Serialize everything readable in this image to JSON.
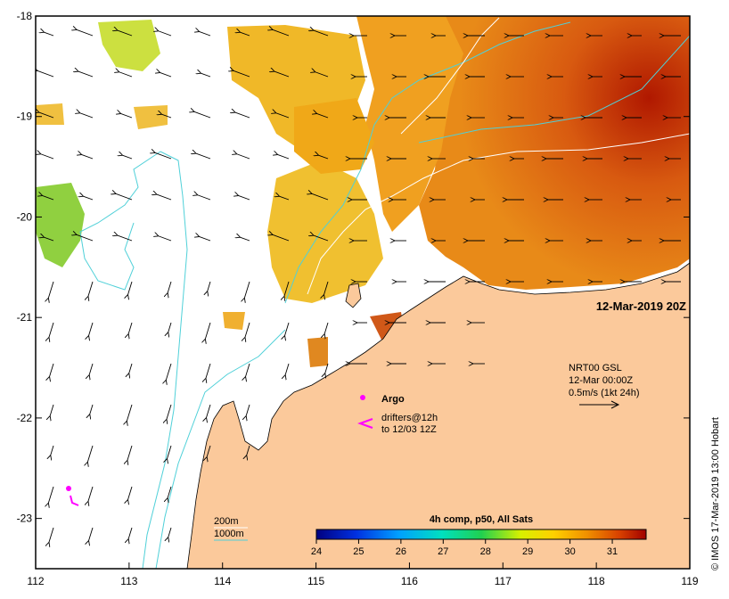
{
  "map": {
    "lon_range": [
      112,
      119
    ],
    "lat_range": [
      -23.5,
      -18
    ],
    "x_ticks": [
      "112",
      "113",
      "114",
      "115",
      "116",
      "117",
      "118",
      "119"
    ],
    "y_ticks": [
      "-18",
      "-19",
      "-20",
      "-21",
      "-22",
      "-23"
    ],
    "timestamp": "12-Mar-2019 20Z",
    "credit": "© IMOS 17-Mar-2019 13:00 Hobart",
    "current_info": {
      "line1": "NRT00 GSL",
      "line2": "12-Mar 00:00Z",
      "line3": "0.5m/s (1kt 24h)"
    },
    "argo_label": "Argo",
    "drifters_line1": "drifters@12h",
    "drifters_line2": "to 12/03 12Z",
    "contours": {
      "c200": "200m",
      "c1000": "1000m"
    },
    "colorbar": {
      "title": "4h comp, p50, All Sats",
      "min": 24,
      "max": 31.8,
      "ticks": [
        "24",
        "25",
        "26",
        "27",
        "28",
        "29",
        "30",
        "31"
      ]
    },
    "colors": {
      "land": "#fbc99b",
      "contour_1000": "#4fd0d8",
      "contour_200": "#ffffff",
      "argo": "#ff00ff",
      "drifter": "#ff00ff"
    }
  }
}
